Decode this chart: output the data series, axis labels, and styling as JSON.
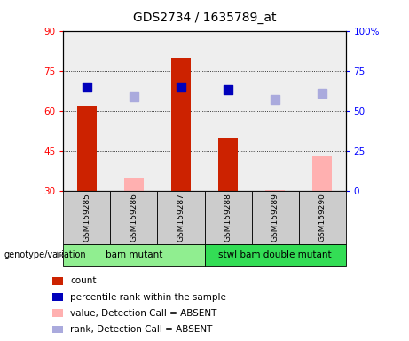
{
  "title": "GDS2734 / 1635789_at",
  "samples": [
    "GSM159285",
    "GSM159286",
    "GSM159287",
    "GSM159288",
    "GSM159289",
    "GSM159290"
  ],
  "groups": [
    {
      "label": "bam mutant",
      "indices": [
        0,
        1,
        2
      ],
      "color": "#90ee90"
    },
    {
      "label": "stwl bam double mutant",
      "indices": [
        3,
        4,
        5
      ],
      "color": "#33dd55"
    }
  ],
  "count_values": [
    62,
    null,
    80,
    50,
    null,
    null
  ],
  "count_color": "#cc2200",
  "absent_value_values": [
    null,
    35,
    null,
    null,
    30.5,
    43
  ],
  "absent_value_color": "#ffb0b0",
  "percentile_rank_values": [
    65,
    null,
    65,
    63,
    null,
    null
  ],
  "percentile_rank_color": "#0000bb",
  "absent_rank_values": [
    null,
    59,
    null,
    null,
    57,
    61
  ],
  "absent_rank_color": "#aaaadd",
  "ylim_left": [
    30,
    90
  ],
  "ylim_right": [
    0,
    100
  ],
  "yticks_left": [
    30,
    45,
    60,
    75,
    90
  ],
  "yticks_right": [
    0,
    25,
    50,
    75,
    100
  ],
  "ytick_labels_right": [
    "0",
    "25",
    "50",
    "75",
    "100%"
  ],
  "bar_bottom": 30,
  "bar_width": 0.4,
  "dot_size": 45,
  "legend_items": [
    {
      "label": "count",
      "color": "#cc2200"
    },
    {
      "label": "percentile rank within the sample",
      "color": "#0000bb"
    },
    {
      "label": "value, Detection Call = ABSENT",
      "color": "#ffb0b0"
    },
    {
      "label": "rank, Detection Call = ABSENT",
      "color": "#aaaadd"
    }
  ],
  "sample_box_color": "#cccccc",
  "plot_bg_color": "#eeeeee"
}
